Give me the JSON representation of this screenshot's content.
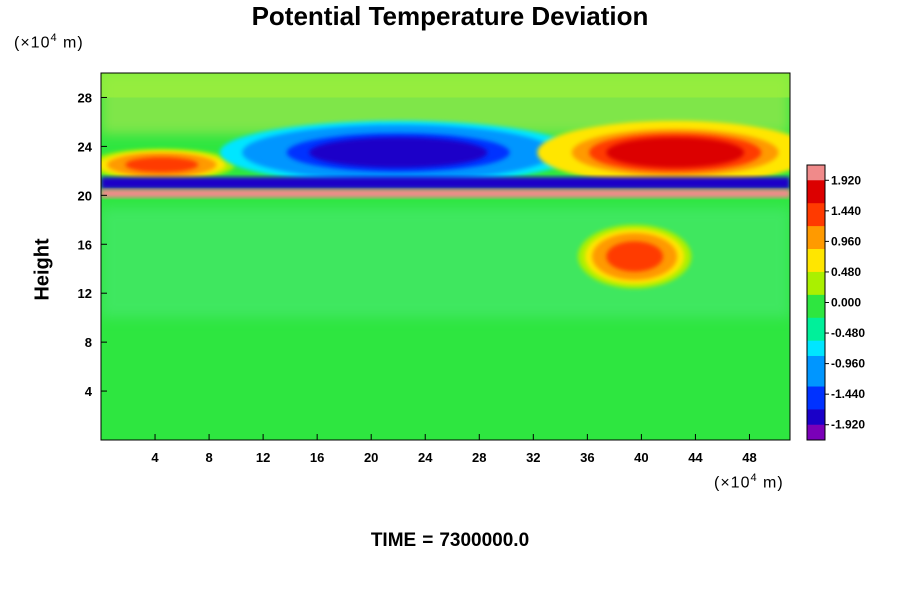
{
  "chart_data": {
    "type": "heatmap",
    "title": "Potential Temperature Deviation",
    "ylabel": "Height",
    "y_unit": {
      "prefix": "(×10",
      "exp": "4",
      "suffix": " m)"
    },
    "x_unit": {
      "prefix": "(×10",
      "exp": "4",
      "suffix": " m)"
    },
    "x_ticks": [
      "4",
      "8",
      "12",
      "16",
      "20",
      "24",
      "28",
      "32",
      "36",
      "40",
      "44",
      "48"
    ],
    "y_ticks": [
      "4",
      "8",
      "12",
      "16",
      "20",
      "24",
      "28"
    ],
    "xlim": [
      0,
      51
    ],
    "ylim": [
      0,
      30
    ],
    "colorbar": {
      "ticks": [
        "1.920",
        "1.440",
        "0.960",
        "0.480",
        "0.000",
        "-0.480",
        "-0.960",
        "-1.440",
        "-1.920"
      ],
      "range": [
        -2.16,
        2.16
      ],
      "colors": [
        "#7a00b8",
        "#1a00c8",
        "#0032ff",
        "#0096ff",
        "#00e6ff",
        "#00f09a",
        "#2ee640",
        "#aaf000",
        "#ffe600",
        "#ff9a00",
        "#ff3a00",
        "#dc0000",
        "#f08a8a"
      ]
    },
    "features": [
      {
        "name": "upper-left warm lobe",
        "x": [
          0,
          9
        ],
        "y": [
          21.5,
          23.5
        ],
        "value": 1.5
      },
      {
        "name": "central cold lobe",
        "x": [
          11,
          33
        ],
        "y": [
          21.5,
          25.5
        ],
        "value": -1.9
      },
      {
        "name": "upper-right warm lobe",
        "x": [
          34,
          51
        ],
        "y": [
          21.5,
          25.5
        ],
        "value": 1.8
      },
      {
        "name": "tropopause cold band",
        "x": [
          0,
          51
        ],
        "y": [
          20.5,
          21.5
        ],
        "value": -1.9
      },
      {
        "name": "tropopause warm band",
        "x": [
          0,
          51
        ],
        "y": [
          19.8,
          20.5
        ],
        "value": 2.0
      },
      {
        "name": "convective warm cluster",
        "x": [
          36,
          43
        ],
        "y": [
          13,
          17
        ],
        "value": 1.5
      },
      {
        "name": "troposphere background",
        "x": [
          0,
          51
        ],
        "y": [
          0,
          19
        ],
        "value": 0.0
      }
    ],
    "grid": false,
    "legend": "right"
  },
  "time": {
    "label": "TIME",
    "eq": "=",
    "value": "7300000.0"
  }
}
